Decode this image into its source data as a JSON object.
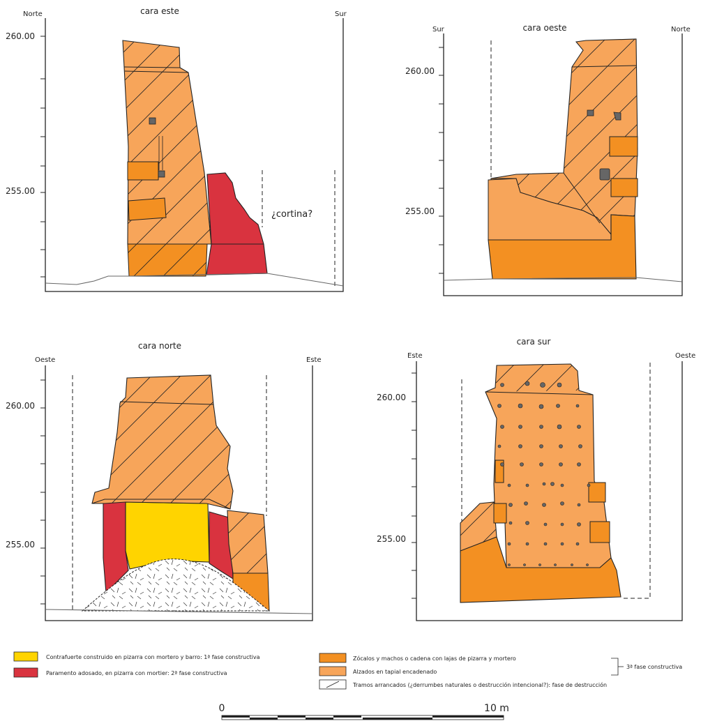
{
  "panels": {
    "este": {
      "title": "cara este",
      "left": "Norte",
      "right": "Sur",
      "elev_upper": "260.00",
      "elev_lower": "255.00",
      "note": "¿cortina?"
    },
    "oeste": {
      "title": "cara oeste",
      "left": "Sur",
      "right": "Norte",
      "elev_upper": "260.00",
      "elev_lower": "255.00"
    },
    "norte": {
      "title": "cara norte",
      "left": "Oeste",
      "right": "Este",
      "elev_upper": "260.00",
      "elev_lower": "255.00"
    },
    "sur": {
      "title": "cara sur",
      "left": "Este",
      "right": "Oeste",
      "elev_upper": "260.00",
      "elev_lower": "255.00"
    }
  },
  "legend": {
    "yellow": "Contrafuerte construido en pizarra con mortero y barro: 1ª fase constructiva",
    "red": "Paramento adosado, en pizarra con mortier: 2ª fase constructiva",
    "dark_orange": "Zócalos y machos o cadena con lajas de pizarra y mortero",
    "light_orange": "Alzados en tapial encadenado",
    "hatch": "Tramos arrancados (¿derrumbes naturales o destrucción intencional?): fase de destrucción",
    "phase3": "3ª fase constructiva"
  },
  "scale": {
    "start": "0",
    "end": "10 m"
  },
  "colors": {
    "yellow": "#ffd400",
    "red": "#d9333f",
    "dark_orange": "#f39022",
    "light_orange": "#f7a55a",
    "stone": "#666666"
  }
}
